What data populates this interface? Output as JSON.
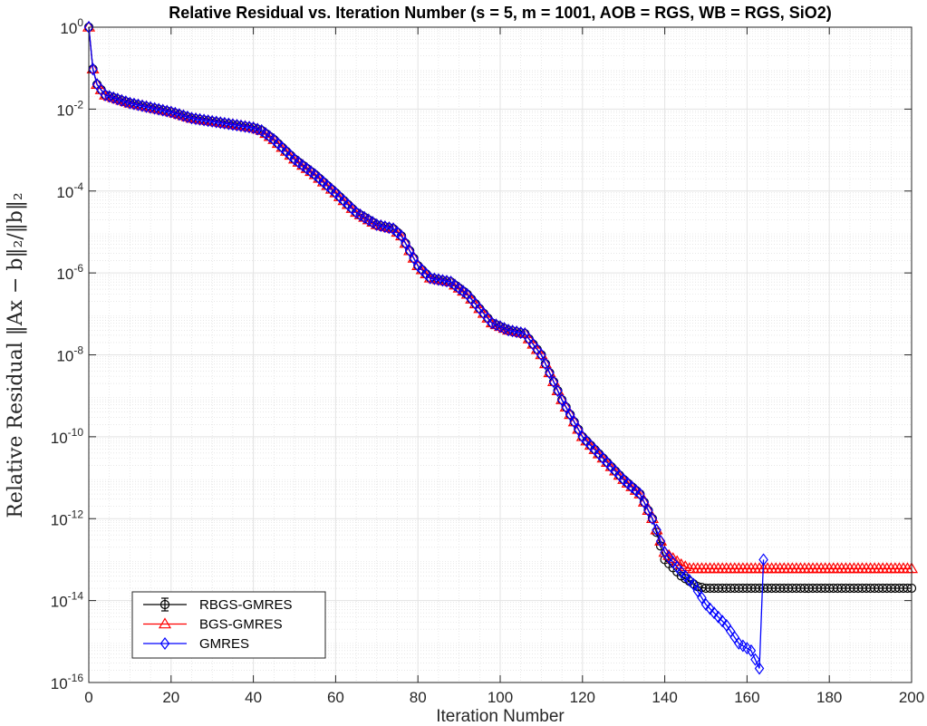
{
  "chart_data": {
    "type": "line",
    "title": "Relative Residual vs. Iteration Number (s = 5, m = 1001, AOB = RGS, WB = RGS, SiO2)",
    "xlabel": "Iteration Number",
    "ylabel": "Relative Residual ‖Ax − b‖₂/‖b‖₂",
    "x_ticks": [
      "0",
      "20",
      "40",
      "60",
      "80",
      "100",
      "120",
      "140",
      "160",
      "180",
      "200"
    ],
    "y_ticks": [
      {
        "base": "10",
        "exp": "0"
      },
      {
        "base": "10",
        "exp": "-2"
      },
      {
        "base": "10",
        "exp": "-4"
      },
      {
        "base": "10",
        "exp": "-6"
      },
      {
        "base": "10",
        "exp": "-8"
      },
      {
        "base": "10",
        "exp": "-10"
      },
      {
        "base": "10",
        "exp": "-12"
      },
      {
        "base": "10",
        "exp": "-14"
      },
      {
        "base": "10",
        "exp": "-16"
      }
    ],
    "xlim": [
      0,
      200
    ],
    "ylim": [
      1e-16,
      1
    ],
    "yscale": "log",
    "grid": true,
    "minor_grid": true,
    "legend_position": "bottom-left",
    "series": [
      {
        "name": "RBGS-GMRES",
        "color": "#000000",
        "marker": "circle",
        "x_start": 0,
        "x_end": 200,
        "anchors": [
          [
            0,
            1
          ],
          [
            1,
            0.095
          ],
          [
            2,
            0.04
          ],
          [
            4,
            0.022
          ],
          [
            10,
            0.014
          ],
          [
            20,
            0.0085
          ],
          [
            25,
            0.006
          ],
          [
            40,
            0.0035
          ],
          [
            42,
            0.003
          ],
          [
            45,
            0.0018
          ],
          [
            50,
            0.0006
          ],
          [
            55,
            0.00025
          ],
          [
            60,
            9e-05
          ],
          [
            65,
            3e-05
          ],
          [
            70,
            1.5e-05
          ],
          [
            74,
            1.2e-05
          ],
          [
            76,
            8e-06
          ],
          [
            80,
            1.5e-06
          ],
          [
            83,
            7.5e-07
          ],
          [
            88,
            6e-07
          ],
          [
            92,
            3e-07
          ],
          [
            98,
            6e-08
          ],
          [
            102,
            4e-08
          ],
          [
            106,
            3.3e-08
          ],
          [
            110,
            1e-08
          ],
          [
            115,
            8e-10
          ],
          [
            120,
            1e-10
          ],
          [
            125,
            3e-11
          ],
          [
            130,
            9e-12
          ],
          [
            134,
            4e-12
          ],
          [
            137,
            1e-12
          ],
          [
            140,
            1e-13
          ],
          [
            144,
            4e-14
          ],
          [
            148,
            2.2e-14
          ],
          [
            150,
            2e-14
          ],
          [
            200,
            2e-14
          ]
        ]
      },
      {
        "name": "BGS-GMRES",
        "color": "#ff0000",
        "marker": "triangle",
        "x_start": 0,
        "x_end": 200,
        "anchors": [
          [
            0,
            1
          ],
          [
            1,
            0.095
          ],
          [
            2,
            0.04
          ],
          [
            4,
            0.022
          ],
          [
            10,
            0.014
          ],
          [
            20,
            0.0085
          ],
          [
            25,
            0.006
          ],
          [
            40,
            0.0035
          ],
          [
            42,
            0.003
          ],
          [
            45,
            0.0018
          ],
          [
            50,
            0.0006
          ],
          [
            55,
            0.00025
          ],
          [
            60,
            9e-05
          ],
          [
            65,
            3e-05
          ],
          [
            70,
            1.5e-05
          ],
          [
            74,
            1.2e-05
          ],
          [
            76,
            8e-06
          ],
          [
            80,
            1.5e-06
          ],
          [
            83,
            7.5e-07
          ],
          [
            88,
            6e-07
          ],
          [
            92,
            3e-07
          ],
          [
            98,
            6e-08
          ],
          [
            102,
            4e-08
          ],
          [
            106,
            3.3e-08
          ],
          [
            110,
            1e-08
          ],
          [
            115,
            8e-10
          ],
          [
            120,
            1e-10
          ],
          [
            125,
            3e-11
          ],
          [
            130,
            9e-12
          ],
          [
            134,
            4e-12
          ],
          [
            137,
            1e-12
          ],
          [
            140,
            1.5e-13
          ],
          [
            144,
            7.5e-14
          ],
          [
            146,
            6e-14
          ],
          [
            200,
            6e-14
          ]
        ]
      },
      {
        "name": "GMRES",
        "color": "#0000ff",
        "marker": "diamond",
        "x_start": 0,
        "x_end": 164,
        "anchors": [
          [
            0,
            1
          ],
          [
            1,
            0.095
          ],
          [
            2,
            0.04
          ],
          [
            4,
            0.022
          ],
          [
            10,
            0.014
          ],
          [
            20,
            0.0085
          ],
          [
            25,
            0.006
          ],
          [
            40,
            0.0035
          ],
          [
            42,
            0.003
          ],
          [
            45,
            0.0018
          ],
          [
            50,
            0.0006
          ],
          [
            55,
            0.00025
          ],
          [
            60,
            9e-05
          ],
          [
            65,
            3e-05
          ],
          [
            70,
            1.5e-05
          ],
          [
            74,
            1.2e-05
          ],
          [
            76,
            8e-06
          ],
          [
            80,
            1.5e-06
          ],
          [
            83,
            7.5e-07
          ],
          [
            88,
            6e-07
          ],
          [
            92,
            3e-07
          ],
          [
            98,
            6e-08
          ],
          [
            102,
            4e-08
          ],
          [
            106,
            3.3e-08
          ],
          [
            110,
            1e-08
          ],
          [
            115,
            8e-10
          ],
          [
            120,
            1e-10
          ],
          [
            125,
            3e-11
          ],
          [
            130,
            9e-12
          ],
          [
            134,
            4e-12
          ],
          [
            137,
            1e-12
          ],
          [
            140,
            1.5e-13
          ],
          [
            144,
            5e-14
          ],
          [
            147,
            2.5e-14
          ],
          [
            150,
            8e-15
          ],
          [
            155,
            2.5e-15
          ],
          [
            158,
            9e-16
          ],
          [
            161,
            6e-16
          ],
          [
            163,
            2.2e-16
          ],
          [
            164,
            1e-13
          ]
        ]
      }
    ]
  }
}
